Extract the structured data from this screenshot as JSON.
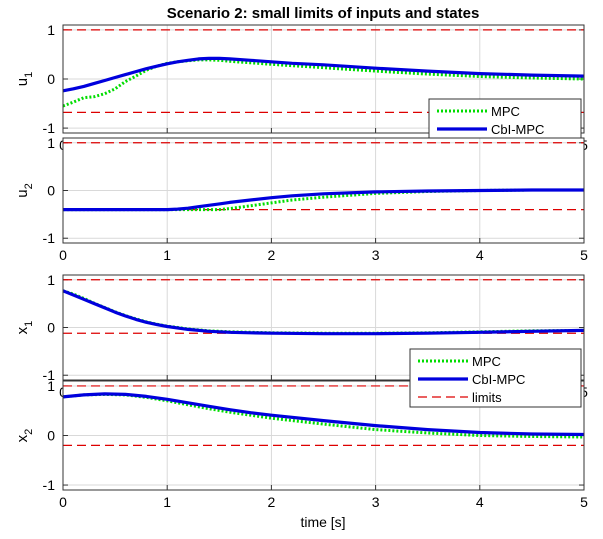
{
  "chart_data": {
    "type": "line",
    "title": "Scenario 2: small limits of inputs and states",
    "xlabel": "time [s]",
    "xlim": [
      0,
      5
    ],
    "xticks": [
      "0",
      "1",
      "2",
      "3",
      "4",
      "5"
    ],
    "grid": true,
    "legend_labels": [
      "MPC",
      "CbI-MPC",
      "limits"
    ],
    "colors": {
      "MPC": "#00dd00",
      "CbI-MPC": "#0000dd",
      "limits": "#dd0000"
    },
    "subplots": [
      {
        "ylabel": "u",
        "ylabel_sub": "1",
        "ylim": [
          -1.1,
          1.1
        ],
        "yticks": [
          "1",
          "0",
          "-1"
        ],
        "limits": [
          1,
          -0.68
        ],
        "legend": "bottom-right",
        "x": [
          0,
          0.1,
          0.2,
          0.3,
          0.4,
          0.5,
          0.6,
          0.7,
          0.8,
          0.9,
          1.0,
          1.1,
          1.2,
          1.3,
          1.4,
          1.5,
          1.6,
          1.8,
          2.0,
          2.2,
          2.5,
          3.0,
          3.5,
          4.0,
          4.5,
          5.0
        ],
        "series": [
          {
            "name": "MPC",
            "values": [
              -0.55,
              -0.47,
              -0.38,
              -0.36,
              -0.3,
              -0.2,
              -0.05,
              0.06,
              0.18,
              0.26,
              0.32,
              0.35,
              0.37,
              0.39,
              0.39,
              0.38,
              0.36,
              0.33,
              0.3,
              0.27,
              0.23,
              0.16,
              0.1,
              0.05,
              0.02,
              0.0
            ]
          },
          {
            "name": "CbI-MPC",
            "values": [
              -0.24,
              -0.2,
              -0.15,
              -0.09,
              -0.03,
              0.03,
              0.09,
              0.15,
              0.21,
              0.26,
              0.31,
              0.35,
              0.38,
              0.41,
              0.42,
              0.42,
              0.41,
              0.38,
              0.35,
              0.32,
              0.29,
              0.22,
              0.16,
              0.11,
              0.08,
              0.06
            ]
          }
        ]
      },
      {
        "ylabel": "u",
        "ylabel_sub": "2",
        "ylim": [
          -1.1,
          1.1
        ],
        "yticks": [
          "1",
          "0",
          "-1"
        ],
        "limits": [
          1,
          -0.4
        ],
        "x": [
          0,
          0.5,
          1.0,
          1.1,
          1.2,
          1.3,
          1.4,
          1.5,
          1.6,
          1.8,
          2.0,
          2.2,
          2.5,
          3.0,
          3.5,
          4.0,
          4.5,
          5.0
        ],
        "series": [
          {
            "name": "MPC",
            "values": [
              -0.4,
              -0.4,
              -0.4,
              -0.4,
              -0.4,
              -0.4,
              -0.4,
              -0.4,
              -0.38,
              -0.32,
              -0.26,
              -0.2,
              -0.14,
              -0.06,
              -0.02,
              0.0,
              0.01,
              0.01
            ]
          },
          {
            "name": "CbI-MPC",
            "values": [
              -0.4,
              -0.4,
              -0.4,
              -0.39,
              -0.37,
              -0.34,
              -0.31,
              -0.28,
              -0.25,
              -0.2,
              -0.15,
              -0.11,
              -0.07,
              -0.03,
              -0.01,
              0.0,
              0.01,
              0.01
            ]
          }
        ]
      },
      {
        "ylabel": "x",
        "ylabel_sub": "1",
        "ylim": [
          -1.1,
          1.1
        ],
        "yticks": [
          "1",
          "0",
          "-1"
        ],
        "limits": [
          1,
          -0.12
        ],
        "x": [
          0,
          0.1,
          0.2,
          0.3,
          0.4,
          0.5,
          0.6,
          0.7,
          0.8,
          0.9,
          1.0,
          1.2,
          1.4,
          1.6,
          1.8,
          2.0,
          2.5,
          3.0,
          3.5,
          4.0,
          4.5,
          5.0
        ],
        "series": [
          {
            "name": "MPC",
            "values": [
              0.77,
              0.7,
              0.61,
              0.51,
              0.42,
              0.33,
              0.25,
              0.18,
              0.12,
              0.07,
              0.03,
              -0.03,
              -0.07,
              -0.09,
              -0.1,
              -0.11,
              -0.12,
              -0.12,
              -0.11,
              -0.09,
              -0.07,
              -0.06
            ]
          },
          {
            "name": "CbI-MPC",
            "values": [
              0.77,
              0.68,
              0.59,
              0.5,
              0.41,
              0.32,
              0.24,
              0.17,
              0.11,
              0.06,
              0.02,
              -0.04,
              -0.08,
              -0.1,
              -0.11,
              -0.12,
              -0.13,
              -0.13,
              -0.12,
              -0.1,
              -0.08,
              -0.06
            ]
          }
        ]
      },
      {
        "ylabel": "x",
        "ylabel_sub": "2",
        "ylim": [
          -1.1,
          1.1
        ],
        "yticks": [
          "1",
          "0",
          "-1"
        ],
        "limits": [
          1,
          -0.2
        ],
        "legend": "top-right",
        "x": [
          0,
          0.2,
          0.4,
          0.6,
          0.8,
          1.0,
          1.2,
          1.4,
          1.6,
          1.8,
          2.0,
          2.5,
          3.0,
          3.5,
          4.0,
          4.5,
          5.0
        ],
        "series": [
          {
            "name": "MPC",
            "values": [
              0.78,
              0.82,
              0.83,
              0.82,
              0.77,
              0.7,
              0.62,
              0.54,
              0.47,
              0.41,
              0.35,
              0.23,
              0.12,
              0.05,
              0.0,
              -0.02,
              -0.03
            ]
          },
          {
            "name": "CbI-MPC",
            "values": [
              0.78,
              0.82,
              0.84,
              0.83,
              0.79,
              0.73,
              0.66,
              0.59,
              0.52,
              0.46,
              0.41,
              0.3,
              0.2,
              0.12,
              0.06,
              0.03,
              0.02
            ]
          }
        ]
      }
    ]
  }
}
